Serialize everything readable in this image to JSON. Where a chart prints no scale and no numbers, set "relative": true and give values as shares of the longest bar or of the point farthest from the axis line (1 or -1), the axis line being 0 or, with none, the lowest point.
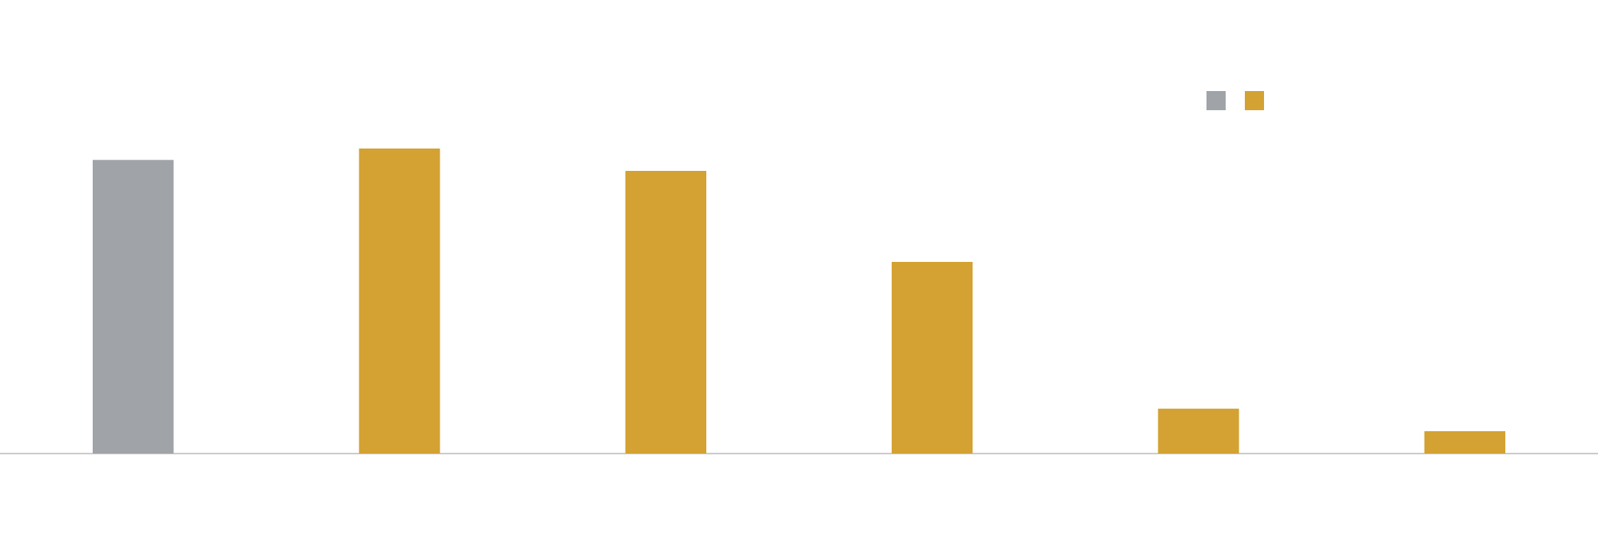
{
  "chart_data": {
    "type": "bar",
    "relative": true,
    "categories": [
      null,
      null,
      null,
      null,
      null,
      null
    ],
    "values": [
      0.963,
      1,
      0.927,
      0.628,
      0.147,
      0.073
    ],
    "colors": [
      "#a0a4a9",
      "#d3a232",
      "#d3a232",
      "#d3a232",
      "#d3a232",
      "#d3a232"
    ],
    "grid": false
  }
}
